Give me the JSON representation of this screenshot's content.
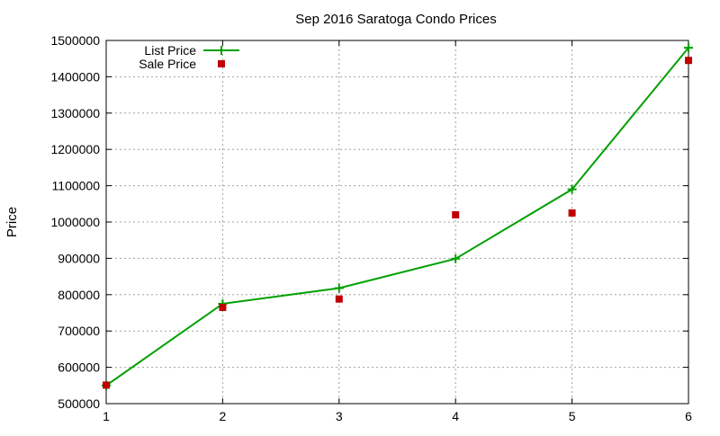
{
  "chart_data": {
    "type": "line",
    "title": "Sep 2016 Saratoga Condo Prices",
    "xlabel": "",
    "ylabel": "Price",
    "x": [
      1,
      2,
      3,
      4,
      5,
      6
    ],
    "xlim": [
      1,
      6
    ],
    "ylim": [
      500000,
      1500000
    ],
    "x_ticks": [
      "1",
      "2",
      "3",
      "4",
      "5",
      "6"
    ],
    "y_ticks": [
      "500000",
      "600000",
      "700000",
      "800000",
      "900000",
      "1000000",
      "1100000",
      "1200000",
      "1300000",
      "1400000",
      "1500000"
    ],
    "grid": true,
    "legend_position": "top-left",
    "series": [
      {
        "name": "List Price",
        "style": "line-with-plus-markers",
        "color": "#00a000",
        "values": [
          550000,
          775000,
          818000,
          899000,
          1090000,
          1480000
        ]
      },
      {
        "name": "Sale Price",
        "style": "square-markers",
        "color": "#c00000",
        "values": [
          551000,
          765000,
          788000,
          1020000,
          1025000,
          1445000
        ]
      }
    ]
  }
}
